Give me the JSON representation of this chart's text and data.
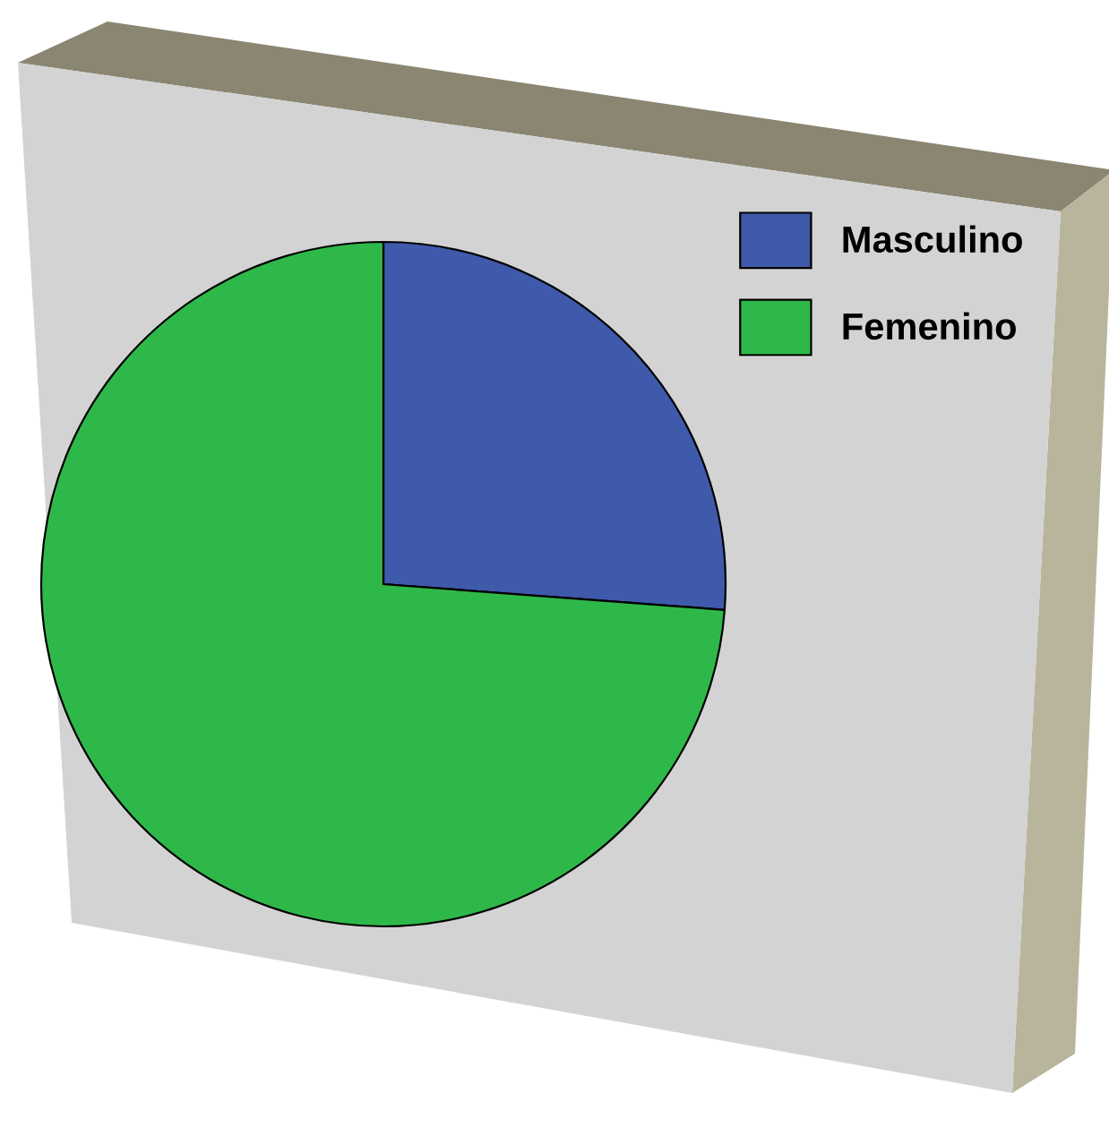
{
  "chart_data": {
    "type": "pie",
    "categories": [
      "Masculino",
      "Femenino"
    ],
    "values": [
      26.2,
      73.8
    ],
    "colors": [
      "#3f59ab",
      "#2fb84a"
    ],
    "legend": "top right"
  }
}
